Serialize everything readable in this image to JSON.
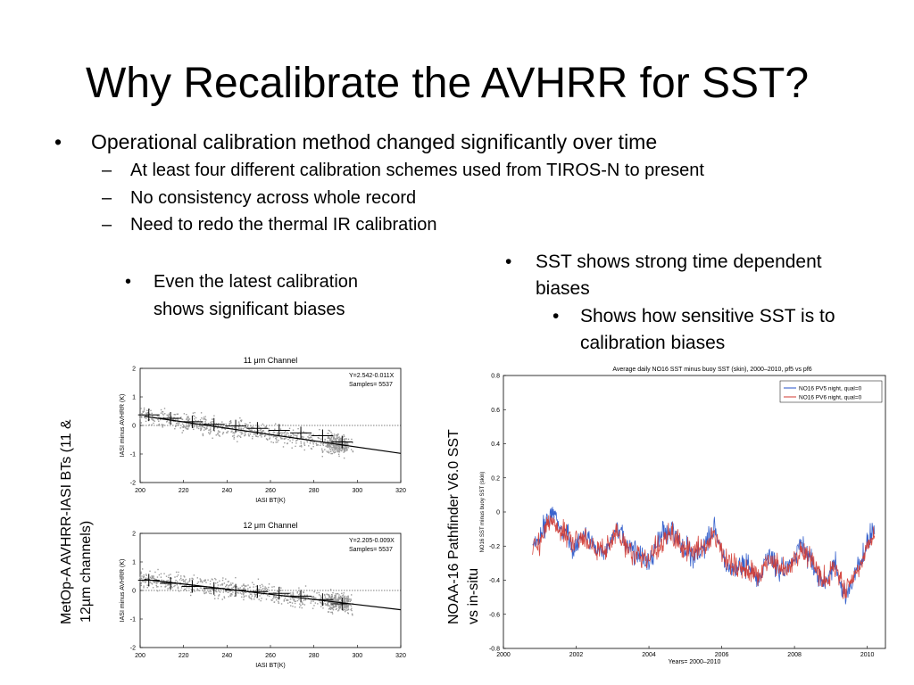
{
  "slide": {
    "title": "Why Recalibrate the AVHRR for SST?",
    "bullets": [
      {
        "text": "Operational calibration method changed significantly over time",
        "subs": [
          "At least four different calibration schemes used from TIROS-N to present",
          "No consistency across whole record",
          "Need to redo the thermal IR calibration"
        ]
      }
    ],
    "left_note": [
      "Even the latest calibration",
      "shows significant biases"
    ],
    "right_note": {
      "lines": [
        "SST shows strong time dependent",
        "biases"
      ],
      "sub": [
        "Shows how sensitive SST is to",
        "calibration biases"
      ]
    },
    "left_side_label": [
      "MetOp-A AVHRR-IASI BTs (11 &",
      "12µm channels)"
    ],
    "right_side_label": [
      "NOAA-16 Pathfinder V6.0 SST",
      "vs in-situ"
    ]
  },
  "chart_data": [
    {
      "type": "scatter",
      "title": "11 μm Channel",
      "xlabel": "IASI BT(K)",
      "ylabel": "IASI minus AVHRR (K)",
      "xlim": [
        200,
        320
      ],
      "ylim": [
        -2,
        2
      ],
      "xticks": [
        200,
        220,
        240,
        260,
        280,
        300,
        320
      ],
      "yticks": [
        2,
        1,
        0,
        -1,
        -2
      ],
      "annotation": [
        "Y=2.542-0.011X",
        "Samples= 5537"
      ],
      "fit": {
        "intercept": 2.542,
        "slope": -0.011
      },
      "binned_means": [
        {
          "x": 204,
          "y": 0.37
        },
        {
          "x": 214,
          "y": 0.25
        },
        {
          "x": 224,
          "y": 0.13
        },
        {
          "x": 234,
          "y": 0.04
        },
        {
          "x": 244,
          "y": -0.02
        },
        {
          "x": 254,
          "y": -0.1
        },
        {
          "x": 264,
          "y": -0.17
        },
        {
          "x": 274,
          "y": -0.26
        },
        {
          "x": 284,
          "y": -0.36
        },
        {
          "x": 293,
          "y": -0.58
        }
      ],
      "grid": false
    },
    {
      "type": "scatter",
      "title": "12 μm Channel",
      "xlabel": "IASI BT(K)",
      "ylabel": "IASI minus AVHRR (K)",
      "xlim": [
        200,
        320
      ],
      "ylim": [
        -2,
        2
      ],
      "xticks": [
        200,
        220,
        240,
        260,
        280,
        300,
        320
      ],
      "yticks": [
        2,
        1,
        0,
        -1,
        -2
      ],
      "annotation": [
        "Y=2.205-0.009X",
        "Samples= 5537"
      ],
      "fit": {
        "intercept": 2.205,
        "slope": -0.009
      },
      "binned_means": [
        {
          "x": 204,
          "y": 0.36
        },
        {
          "x": 214,
          "y": 0.25
        },
        {
          "x": 224,
          "y": 0.14
        },
        {
          "x": 234,
          "y": 0.07
        },
        {
          "x": 244,
          "y": 0.01
        },
        {
          "x": 254,
          "y": -0.04
        },
        {
          "x": 264,
          "y": -0.1
        },
        {
          "x": 274,
          "y": -0.2
        },
        {
          "x": 284,
          "y": -0.32
        },
        {
          "x": 293,
          "y": -0.47
        }
      ],
      "grid": false
    },
    {
      "type": "line",
      "title": "Average daily NO16 SST minus buoy SST (skin), 2000–2010, pf5 vs pf6",
      "xlabel": "Years= 2000–2010",
      "ylabel": "NO16 SST minus buoy SST (skin)",
      "xlim": [
        2000,
        2010.5
      ],
      "ylim": [
        -0.8,
        0.8
      ],
      "xticks": [
        2000,
        2002,
        2004,
        2006,
        2008,
        2010
      ],
      "yticks": [
        0.8,
        0.6,
        0.4,
        0.2,
        0,
        -0.2,
        -0.4,
        -0.6,
        -0.8
      ],
      "legend_position": "top-right",
      "series": [
        {
          "name": "NO16 PV5 night, qual=0",
          "color": "#2352c8",
          "x": [
            2000.8,
            2001.0,
            2001.3,
            2001.6,
            2001.9,
            2002.2,
            2002.5,
            2002.8,
            2003.1,
            2003.4,
            2003.7,
            2004.0,
            2004.3,
            2004.6,
            2004.9,
            2005.2,
            2005.5,
            2005.8,
            2006.1,
            2006.4,
            2006.7,
            2007.0,
            2007.3,
            2007.6,
            2007.9,
            2008.2,
            2008.5,
            2008.8,
            2009.1,
            2009.4,
            2009.7,
            2010.0,
            2010.2
          ],
          "y": [
            -0.2,
            -0.15,
            0.0,
            -0.1,
            -0.2,
            -0.12,
            -0.2,
            -0.25,
            -0.1,
            -0.2,
            -0.25,
            -0.3,
            -0.15,
            -0.1,
            -0.2,
            -0.25,
            -0.2,
            -0.1,
            -0.3,
            -0.35,
            -0.3,
            -0.4,
            -0.25,
            -0.35,
            -0.3,
            -0.2,
            -0.3,
            -0.45,
            -0.3,
            -0.5,
            -0.35,
            -0.2,
            -0.1
          ]
        },
        {
          "name": "NO16 PV6 night, qual=0",
          "color": "#d23a32",
          "x": [
            2000.8,
            2001.0,
            2001.3,
            2001.6,
            2001.9,
            2002.2,
            2002.5,
            2002.8,
            2003.1,
            2003.4,
            2003.7,
            2004.0,
            2004.3,
            2004.6,
            2004.9,
            2005.2,
            2005.5,
            2005.8,
            2006.1,
            2006.4,
            2006.7,
            2007.0,
            2007.3,
            2007.6,
            2007.9,
            2008.2,
            2008.5,
            2008.8,
            2009.1,
            2009.4,
            2009.7,
            2010.0,
            2010.2
          ],
          "y": [
            -0.18,
            -0.16,
            -0.05,
            -0.12,
            -0.18,
            -0.14,
            -0.22,
            -0.23,
            -0.12,
            -0.22,
            -0.24,
            -0.28,
            -0.18,
            -0.12,
            -0.22,
            -0.24,
            -0.22,
            -0.14,
            -0.28,
            -0.33,
            -0.32,
            -0.38,
            -0.27,
            -0.34,
            -0.31,
            -0.22,
            -0.3,
            -0.42,
            -0.32,
            -0.47,
            -0.34,
            -0.22,
            -0.12
          ]
        }
      ],
      "grid": false
    }
  ]
}
